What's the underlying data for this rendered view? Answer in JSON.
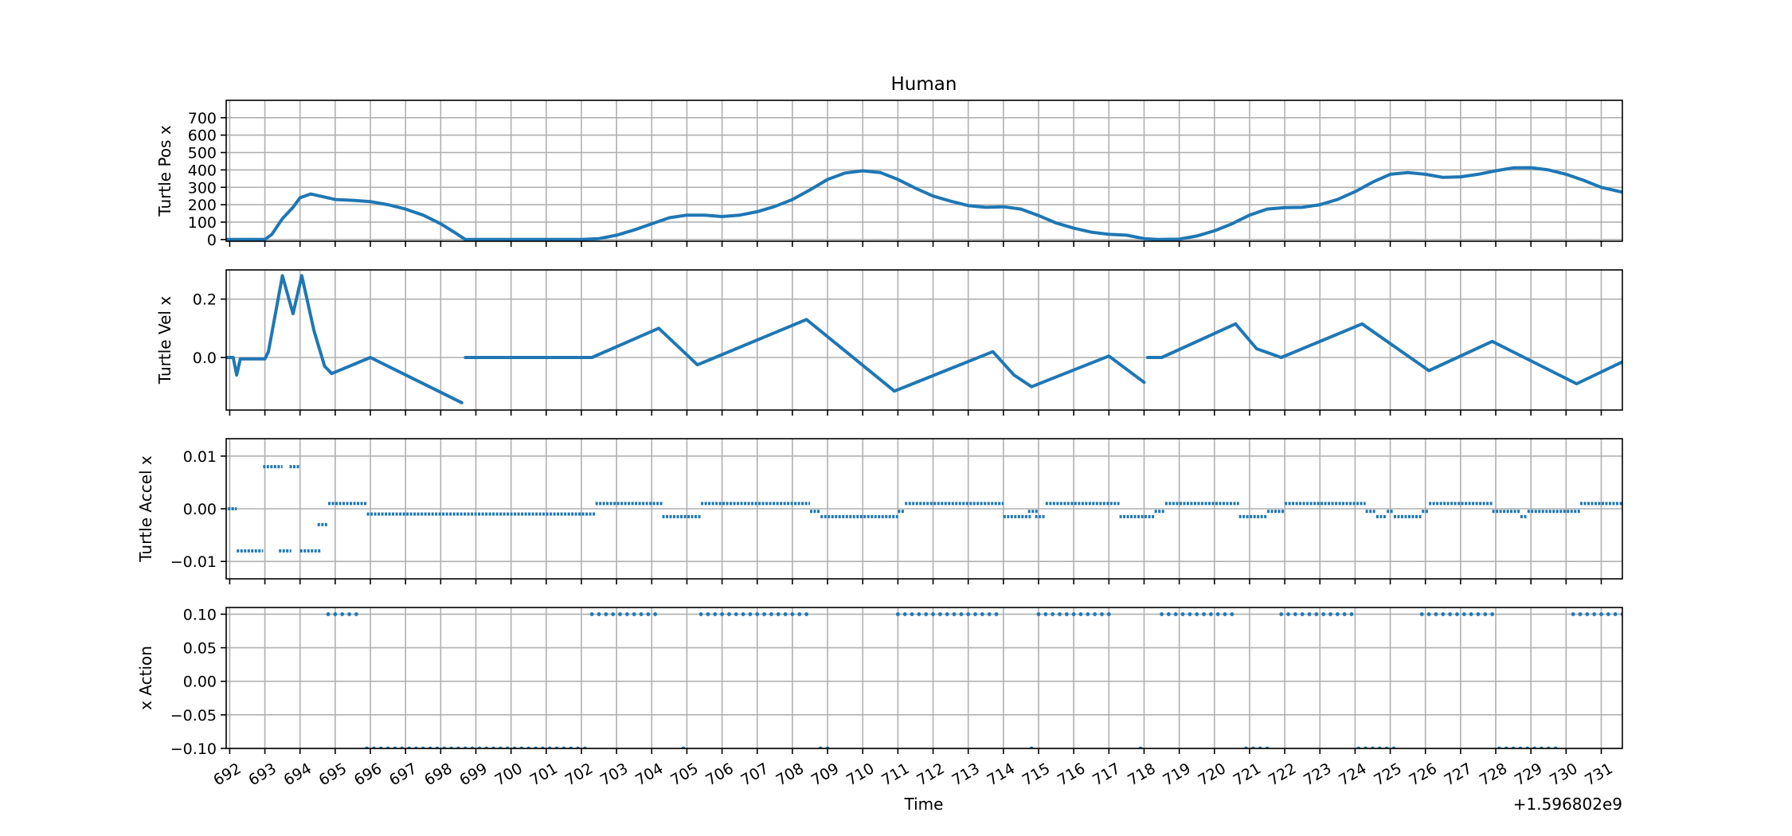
{
  "title": "Human",
  "colors": {
    "series": "#1f77b4",
    "grid": "#b0b0b0"
  },
  "chart_data": [
    {
      "type": "line",
      "name": "pos",
      "title": "Human",
      "xlabel": "",
      "ylabel": "Turtle Pos x",
      "xlim": [
        691.9,
        731.6
      ],
      "ylim": [
        -10,
        800
      ],
      "yticks": [
        0,
        100,
        200,
        300,
        400,
        500,
        600,
        700
      ],
      "ytick_labels": [
        "0",
        "100",
        "200",
        "300",
        "400",
        "500",
        "600",
        "700"
      ],
      "grid": true,
      "segments": [
        [
          [
            691.9,
            0
          ],
          [
            692.5,
            0
          ],
          [
            693.0,
            0
          ],
          [
            693.2,
            30
          ],
          [
            693.5,
            120
          ],
          [
            693.8,
            185
          ],
          [
            694.0,
            240
          ],
          [
            694.3,
            262
          ],
          [
            694.6,
            248
          ],
          [
            695.0,
            230
          ],
          [
            695.5,
            225
          ],
          [
            696.0,
            218
          ],
          [
            696.5,
            200
          ],
          [
            697.0,
            175
          ],
          [
            697.5,
            140
          ],
          [
            698.0,
            90
          ],
          [
            698.4,
            40
          ],
          [
            698.7,
            0
          ],
          [
            699.0,
            0
          ],
          [
            700.0,
            0
          ],
          [
            701.0,
            0
          ],
          [
            702.0,
            0
          ],
          [
            702.5,
            5
          ],
          [
            703.0,
            25
          ],
          [
            703.5,
            55
          ],
          [
            704.0,
            90
          ],
          [
            704.5,
            125
          ],
          [
            705.0,
            140
          ],
          [
            705.5,
            140
          ],
          [
            706.0,
            132
          ],
          [
            706.5,
            140
          ],
          [
            707.0,
            160
          ],
          [
            707.5,
            190
          ],
          [
            708.0,
            230
          ],
          [
            708.5,
            285
          ],
          [
            709.0,
            345
          ],
          [
            709.5,
            382
          ],
          [
            710.0,
            395
          ],
          [
            710.5,
            385
          ],
          [
            711.0,
            345
          ],
          [
            711.5,
            295
          ],
          [
            712.0,
            250
          ],
          [
            712.5,
            220
          ],
          [
            713.0,
            195
          ],
          [
            713.5,
            185
          ],
          [
            714.0,
            188
          ],
          [
            714.5,
            175
          ],
          [
            715.0,
            138
          ],
          [
            715.5,
            95
          ],
          [
            716.0,
            65
          ],
          [
            716.5,
            42
          ],
          [
            717.0,
            30
          ],
          [
            717.5,
            25
          ],
          [
            718.0,
            5
          ],
          [
            718.4,
            0
          ],
          [
            719.0,
            2
          ],
          [
            719.5,
            20
          ],
          [
            720.0,
            50
          ],
          [
            720.5,
            90
          ],
          [
            721.0,
            140
          ],
          [
            721.5,
            175
          ],
          [
            722.0,
            183
          ],
          [
            722.5,
            185
          ],
          [
            723.0,
            200
          ],
          [
            723.5,
            230
          ],
          [
            724.0,
            275
          ],
          [
            724.5,
            330
          ],
          [
            725.0,
            375
          ],
          [
            725.5,
            385
          ],
          [
            726.0,
            375
          ],
          [
            726.5,
            357
          ],
          [
            727.0,
            360
          ],
          [
            727.5,
            375
          ],
          [
            728.0,
            395
          ],
          [
            728.5,
            412
          ],
          [
            729.0,
            413
          ],
          [
            729.5,
            400
          ],
          [
            730.0,
            375
          ],
          [
            730.5,
            340
          ],
          [
            731.0,
            300
          ],
          [
            731.6,
            272
          ]
        ]
      ]
    },
    {
      "type": "line",
      "name": "vel",
      "xlabel": "",
      "ylabel": "Turtle Vel x",
      "xlim": [
        691.9,
        731.6
      ],
      "ylim": [
        -0.18,
        0.3
      ],
      "yticks": [
        0.0,
        0.2
      ],
      "ytick_labels": [
        "0.0",
        "0.2"
      ],
      "grid": true,
      "segments": [
        [
          [
            691.9,
            0
          ],
          [
            692.1,
            0
          ],
          [
            692.2,
            -0.06
          ],
          [
            692.3,
            -0.005
          ],
          [
            693.0,
            -0.005
          ],
          [
            693.1,
            0.02
          ],
          [
            693.5,
            0.28
          ],
          [
            693.8,
            0.15
          ],
          [
            694.05,
            0.28
          ],
          [
            694.4,
            0.09
          ],
          [
            694.7,
            -0.03
          ],
          [
            694.9,
            -0.055
          ],
          [
            696.0,
            0.0
          ],
          [
            698.6,
            -0.155
          ]
        ],
        [
          [
            698.7,
            0
          ],
          [
            702.3,
            0
          ],
          [
            704.2,
            0.1
          ],
          [
            705.3,
            -0.025
          ],
          [
            708.4,
            0.13
          ],
          [
            710.9,
            -0.115
          ],
          [
            713.7,
            0.02
          ],
          [
            714.3,
            -0.06
          ],
          [
            714.8,
            -0.1
          ],
          [
            717.0,
            0.005
          ],
          [
            718.0,
            -0.085
          ]
        ],
        [
          [
            718.1,
            0
          ],
          [
            718.5,
            0
          ],
          [
            720.6,
            0.115
          ],
          [
            721.2,
            0.03
          ],
          [
            721.9,
            0.0
          ],
          [
            724.2,
            0.115
          ],
          [
            726.1,
            -0.045
          ],
          [
            727.9,
            0.055
          ],
          [
            730.3,
            -0.09
          ],
          [
            731.6,
            -0.015
          ]
        ]
      ]
    },
    {
      "type": "scatter",
      "name": "accel",
      "xlabel": "",
      "ylabel": "Turtle Accel x",
      "xlim": [
        691.9,
        731.6
      ],
      "ylim": [
        -0.0133,
        0.0133
      ],
      "yticks": [
        -0.01,
        0.0,
        0.01
      ],
      "ytick_labels": [
        "−0.01",
        "0.00",
        "0.01"
      ],
      "grid": true,
      "runs": [
        [
          691.95,
          692.2,
          0
        ],
        [
          692.2,
          692.95,
          -0.008
        ],
        [
          692.95,
          693.5,
          0.008
        ],
        [
          693.4,
          693.75,
          -0.008
        ],
        [
          693.7,
          694.0,
          0.008
        ],
        [
          694.0,
          694.6,
          -0.008
        ],
        [
          694.5,
          694.8,
          -0.003
        ],
        [
          694.8,
          695.9,
          0.001
        ],
        [
          695.9,
          702.4,
          -0.001
        ],
        [
          702.4,
          704.3,
          0.001
        ],
        [
          704.3,
          705.4,
          -0.0015
        ],
        [
          705.4,
          708.5,
          0.001
        ],
        [
          708.5,
          708.8,
          -0.0005
        ],
        [
          708.8,
          711.0,
          -0.0015
        ],
        [
          711.0,
          711.2,
          -0.0005
        ],
        [
          711.2,
          714.0,
          0.001
        ],
        [
          714.0,
          714.8,
          -0.0015
        ],
        [
          714.7,
          715.0,
          -0.0005
        ],
        [
          714.9,
          715.2,
          -0.0015
        ],
        [
          715.2,
          717.3,
          0.001
        ],
        [
          717.3,
          718.3,
          -0.0015
        ],
        [
          718.3,
          718.6,
          -0.0005
        ],
        [
          718.6,
          720.7,
          0.001
        ],
        [
          720.7,
          721.5,
          -0.0015
        ],
        [
          721.5,
          722.0,
          -0.0005
        ],
        [
          722.0,
          724.3,
          0.001
        ],
        [
          724.3,
          724.6,
          -0.0005
        ],
        [
          724.6,
          724.9,
          -0.0015
        ],
        [
          724.9,
          725.1,
          -0.0005
        ],
        [
          725.1,
          725.9,
          -0.0015
        ],
        [
          725.9,
          726.1,
          -0.0005
        ],
        [
          726.1,
          727.9,
          0.001
        ],
        [
          727.9,
          728.7,
          -0.0005
        ],
        [
          728.7,
          728.9,
          -0.0015
        ],
        [
          728.9,
          730.4,
          -0.0005
        ],
        [
          730.4,
          731.6,
          0.001
        ]
      ]
    },
    {
      "type": "scatter",
      "name": "action",
      "xlabel": "Time",
      "ylabel": "x Action",
      "xlim": [
        691.9,
        731.6
      ],
      "ylim": [
        -0.1,
        0.11
      ],
      "yticks": [
        0.1,
        0.05,
        0.0,
        -0.05,
        -0.1
      ],
      "ytick_labels": [
        "0.10",
        "0.05",
        "0.00",
        "−0.05",
        "−0.10"
      ],
      "grid": true,
      "high_runs": [
        [
          694.8,
          695.6
        ],
        [
          702.3,
          704.1
        ],
        [
          705.4,
          708.4
        ],
        [
          711.0,
          713.8
        ],
        [
          715.0,
          717.1
        ],
        [
          718.5,
          720.6
        ],
        [
          721.9,
          724.0
        ],
        [
          725.9,
          727.9
        ],
        [
          730.2,
          731.6
        ]
      ],
      "low_runs": [
        [
          695.9,
          702.2
        ],
        [
          704.9,
          705.0
        ],
        [
          708.8,
          709.0
        ],
        [
          714.8,
          714.9
        ],
        [
          717.9,
          718.0
        ],
        [
          720.9,
          721.6
        ],
        [
          724.1,
          725.1
        ],
        [
          728.1,
          729.8
        ]
      ],
      "x_tick_values": [
        692,
        693,
        694,
        695,
        696,
        697,
        698,
        699,
        700,
        701,
        702,
        703,
        704,
        705,
        706,
        707,
        708,
        709,
        710,
        711,
        712,
        713,
        714,
        715,
        716,
        717,
        718,
        719,
        720,
        721,
        722,
        723,
        724,
        725,
        726,
        727,
        728,
        729,
        730,
        731
      ],
      "x_tick_labels": [
        "692",
        "693",
        "694",
        "695",
        "696",
        "697",
        "698",
        "699",
        "700",
        "701",
        "702",
        "703",
        "704",
        "705",
        "706",
        "707",
        "708",
        "709",
        "710",
        "711",
        "712",
        "713",
        "714",
        "715",
        "716",
        "717",
        "718",
        "719",
        "720",
        "721",
        "722",
        "723",
        "724",
        "725",
        "726",
        "727",
        "728",
        "729",
        "730",
        "731"
      ],
      "offset_label": "+1.596802e9"
    }
  ]
}
